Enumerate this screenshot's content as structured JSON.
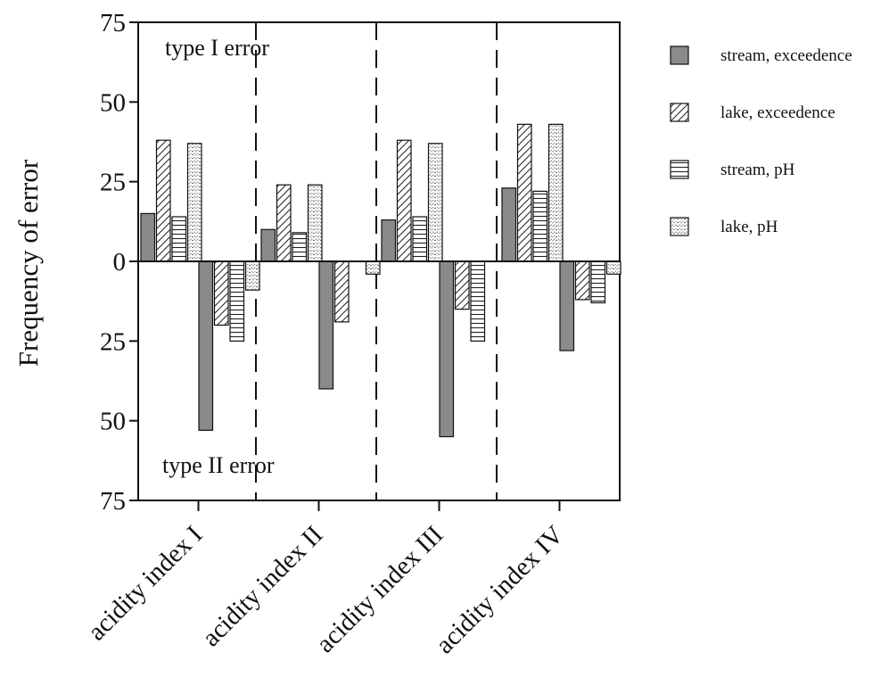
{
  "chart_data": {
    "type": "bar",
    "title": "",
    "xlabel": "",
    "ylabel": "Frequency of error",
    "categories": [
      "acidity index I",
      "acidity index II",
      "acidity index III",
      "acidity index IV"
    ],
    "ylim": [
      -75,
      75
    ],
    "yticks": [
      75,
      50,
      25,
      0,
      -25,
      -50,
      -75
    ],
    "ytick_labels": [
      "75",
      "50",
      "25",
      "0",
      "25",
      "50",
      "75"
    ],
    "grid": false,
    "legend_position": "right",
    "annotations": {
      "top": "type I error",
      "bottom": "type II error"
    },
    "series": [
      {
        "name": "stream, exceedence",
        "pattern": "solid-gray",
        "type_I": [
          15,
          10,
          13,
          23
        ],
        "type_II": [
          53,
          40,
          55,
          28
        ]
      },
      {
        "name": "lake, exceedence",
        "pattern": "diagonal-hatch",
        "type_I": [
          38,
          24,
          38,
          43
        ],
        "type_II": [
          20,
          19,
          15,
          12
        ]
      },
      {
        "name": "stream, pH",
        "pattern": "horizontal-lines",
        "type_I": [
          14,
          9,
          14,
          22
        ],
        "type_II": [
          25,
          0,
          25,
          13
        ]
      },
      {
        "name": "lake, pH",
        "pattern": "zigzag-dots",
        "type_I": [
          37,
          24,
          37,
          43
        ],
        "type_II": [
          9,
          4,
          0,
          4
        ]
      }
    ],
    "colors": {
      "solid_fill": "#8a8a8a",
      "stroke": "#111111"
    }
  }
}
